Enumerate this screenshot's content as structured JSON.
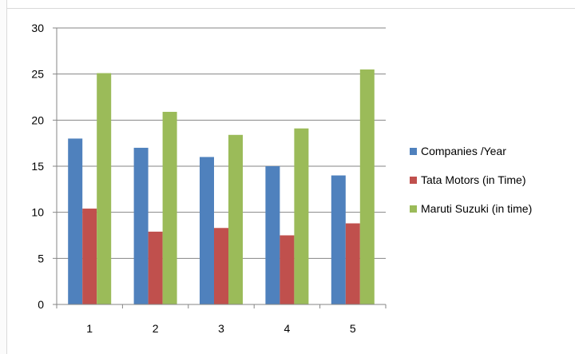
{
  "chart_data": {
    "type": "bar",
    "categories": [
      "1",
      "2",
      "3",
      "4",
      "5"
    ],
    "series": [
      {
        "name": "Companies /Year",
        "color": "#4f81bd",
        "values": [
          18,
          17,
          16,
          15,
          14
        ]
      },
      {
        "name": "Tata Motors (in Time)",
        "color": "#c0504d",
        "values": [
          10.4,
          7.9,
          8.3,
          7.5,
          8.8
        ]
      },
      {
        "name": "Maruti Suzuki (in time)",
        "color": "#9bbb59",
        "values": [
          25.1,
          20.9,
          18.4,
          19.1,
          25.5
        ]
      }
    ],
    "ylim": [
      0,
      30
    ],
    "yticks": [
      0,
      5,
      10,
      15,
      20,
      25,
      30
    ],
    "grid": true,
    "legend": "right"
  }
}
